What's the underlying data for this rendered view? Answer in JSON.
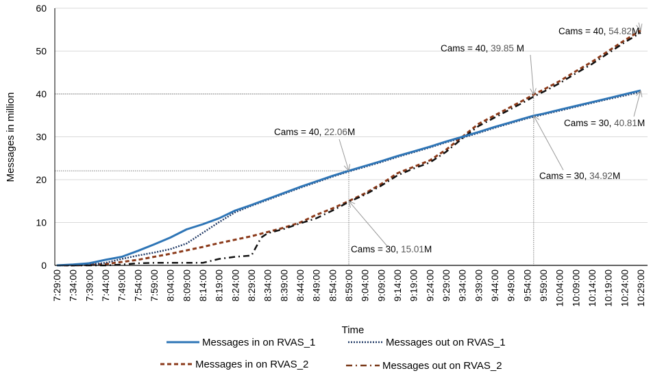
{
  "chart_data": {
    "type": "line",
    "title": "",
    "xlabel": "Time",
    "ylabel": "Messages in million",
    "ylim": [
      0,
      60
    ],
    "yticks": [
      "0",
      "10",
      "20",
      "30",
      "40",
      "50",
      "60"
    ],
    "grid": "horizontal",
    "legend_position": "bottom",
    "categories": [
      "7:29:00",
      "7:34:00",
      "7:39:00",
      "7:44:00",
      "7:49:00",
      "7:54:00",
      "7:59:00",
      "8:04:00",
      "8:09:00",
      "8:14:00",
      "8:19:00",
      "8:24:00",
      "8:29:00",
      "8:34:00",
      "8:39:00",
      "8:44:00",
      "8:49:00",
      "8:54:00",
      "8:59:00",
      "9:04:00",
      "9:09:00",
      "9:14:00",
      "9:19:00",
      "9:24:00",
      "9:29:00",
      "9:34:00",
      "9:39:00",
      "9:44:00",
      "9:49:00",
      "9:54:00",
      "9:59:00",
      "10:04:00",
      "10:09:00",
      "10:14:00",
      "10:19:00",
      "10:24:00",
      "10:29:00"
    ],
    "x_unit": "minutes after 7:29:00",
    "series": [
      {
        "name": "Messages in on RVAS_1",
        "color": "#2E75B6",
        "style": "solid",
        "points": [
          [
            0,
            0
          ],
          [
            5,
            0.2
          ],
          [
            10,
            0.5
          ],
          [
            15,
            1.3
          ],
          [
            20,
            2
          ],
          [
            25,
            3.4
          ],
          [
            30,
            4.9
          ],
          [
            35,
            6.5
          ],
          [
            40,
            8.4
          ],
          [
            45,
            9.6
          ],
          [
            50,
            11
          ],
          [
            55,
            12.8
          ],
          [
            60,
            14.1
          ],
          [
            65,
            15.5
          ],
          [
            70,
            16.9
          ],
          [
            75,
            18.3
          ],
          [
            80,
            19.6
          ],
          [
            85,
            20.9
          ],
          [
            90,
            22.06
          ],
          [
            95,
            23.2
          ],
          [
            100,
            24.3
          ],
          [
            105,
            25.5
          ],
          [
            110,
            26.6
          ],
          [
            115,
            27.7
          ],
          [
            120,
            28.9
          ],
          [
            125,
            30
          ],
          [
            130,
            31.1
          ],
          [
            135,
            32.3
          ],
          [
            140,
            33.4
          ],
          [
            145,
            34.5
          ],
          [
            147,
            34.92
          ],
          [
            150,
            35.4
          ],
          [
            155,
            36.3
          ],
          [
            160,
            37.2
          ],
          [
            165,
            38.1
          ],
          [
            170,
            39
          ],
          [
            175,
            39.9
          ],
          [
            180,
            40.81
          ]
        ]
      },
      {
        "name": "Messages out on RVAS_1",
        "color": "#1F3864",
        "style": "dotted",
        "points": [
          [
            0,
            0
          ],
          [
            5,
            0
          ],
          [
            10,
            0.2
          ],
          [
            15,
            0.6
          ],
          [
            20,
            1.5
          ],
          [
            25,
            2.3
          ],
          [
            30,
            3
          ],
          [
            35,
            3.8
          ],
          [
            40,
            5.1
          ],
          [
            45,
            7.6
          ],
          [
            50,
            10.1
          ],
          [
            55,
            12.4
          ],
          [
            60,
            13.9
          ],
          [
            65,
            15.3
          ],
          [
            70,
            16.7
          ],
          [
            75,
            18.1
          ],
          [
            80,
            19.4
          ],
          [
            85,
            20.7
          ],
          [
            90,
            21.9
          ],
          [
            95,
            23
          ],
          [
            100,
            24.1
          ],
          [
            105,
            25.3
          ],
          [
            110,
            26.4
          ],
          [
            115,
            27.5
          ],
          [
            120,
            28.7
          ],
          [
            125,
            29.8
          ],
          [
            130,
            30.9
          ],
          [
            135,
            32.1
          ],
          [
            140,
            33.2
          ],
          [
            145,
            34.3
          ],
          [
            150,
            35.2
          ],
          [
            155,
            36.1
          ],
          [
            160,
            37
          ],
          [
            165,
            37.9
          ],
          [
            170,
            38.8
          ],
          [
            175,
            39.6
          ],
          [
            180,
            40.5
          ]
        ]
      },
      {
        "name": "Messages in on RVAS_2",
        "color": "#8B3A1A",
        "style": "dashed",
        "points": [
          [
            0,
            0
          ],
          [
            5,
            0
          ],
          [
            10,
            0.1
          ],
          [
            15,
            0.3
          ],
          [
            20,
            0.8
          ],
          [
            25,
            1.3
          ],
          [
            30,
            2
          ],
          [
            35,
            2.7
          ],
          [
            40,
            3.5
          ],
          [
            45,
            4.3
          ],
          [
            50,
            5.2
          ],
          [
            55,
            6
          ],
          [
            60,
            6.8
          ],
          [
            65,
            7.8
          ],
          [
            70,
            8.8
          ],
          [
            75,
            10
          ],
          [
            80,
            11.8
          ],
          [
            85,
            13.3
          ],
          [
            90,
            15.01
          ],
          [
            95,
            16.8
          ],
          [
            100,
            19
          ],
          [
            105,
            21.5
          ],
          [
            110,
            23
          ],
          [
            115,
            24.5
          ],
          [
            120,
            27
          ],
          [
            125,
            30
          ],
          [
            130,
            33
          ],
          [
            135,
            35
          ],
          [
            140,
            37
          ],
          [
            145,
            39
          ],
          [
            147,
            39.85
          ],
          [
            150,
            41
          ],
          [
            155,
            43
          ],
          [
            160,
            45.3
          ],
          [
            165,
            47.5
          ],
          [
            170,
            50
          ],
          [
            175,
            52.5
          ],
          [
            180,
            54.82
          ]
        ]
      },
      {
        "name": "Messages out on RVAS_2",
        "color": "#111111",
        "legend_color": "#7A3A1A",
        "style": "dashdot",
        "points": [
          [
            0,
            0
          ],
          [
            5,
            0
          ],
          [
            10,
            0
          ],
          [
            15,
            0
          ],
          [
            20,
            0.2
          ],
          [
            25,
            0.5
          ],
          [
            30,
            0.6
          ],
          [
            35,
            0.6
          ],
          [
            40,
            0.6
          ],
          [
            45,
            0.6
          ],
          [
            50,
            1.5
          ],
          [
            55,
            2
          ],
          [
            60,
            2.3
          ],
          [
            63,
            6.5
          ],
          [
            65,
            7.5
          ],
          [
            70,
            8.5
          ],
          [
            75,
            9.8
          ],
          [
            80,
            11
          ],
          [
            85,
            12.8
          ],
          [
            90,
            14.8
          ],
          [
            95,
            16.5
          ],
          [
            100,
            18.6
          ],
          [
            105,
            21
          ],
          [
            110,
            22.6
          ],
          [
            115,
            24
          ],
          [
            120,
            26.5
          ],
          [
            125,
            29.6
          ],
          [
            130,
            32.5
          ],
          [
            135,
            34.5
          ],
          [
            140,
            36.5
          ],
          [
            145,
            38.5
          ],
          [
            147,
            39.4
          ],
          [
            150,
            40.5
          ],
          [
            155,
            42.5
          ],
          [
            160,
            44.8
          ],
          [
            165,
            47
          ],
          [
            170,
            49.5
          ],
          [
            175,
            52
          ],
          [
            180,
            54.3
          ]
        ]
      }
    ],
    "reference_lines": [
      {
        "value": 40,
        "until_minute": 147
      },
      {
        "value": 22.06,
        "until_minute": 90
      }
    ],
    "annotations": [
      {
        "label": "Cams = 40,",
        "value_text": "54.82",
        "unit": "M",
        "target": [
          180,
          54.82
        ]
      },
      {
        "label": "Cams = 40,",
        "value_text": "39.85 ",
        "unit": "M",
        "target": [
          147,
          39.85
        ]
      },
      {
        "label": "Cams = 30,",
        "value_text": "40.81",
        "unit": "M",
        "target": [
          180,
          40.81
        ]
      },
      {
        "label": "Cams =  40,",
        "value_text": "22.06",
        "unit": "M",
        "target": [
          90,
          22.06
        ]
      },
      {
        "label": "Cams = 30,",
        "value_text": "34.92",
        "unit": "M",
        "target": [
          147,
          34.92
        ]
      },
      {
        "label": "Cams = 30,",
        "value_text": "15.01",
        "unit": "M",
        "target": [
          90,
          15.01
        ]
      }
    ]
  }
}
